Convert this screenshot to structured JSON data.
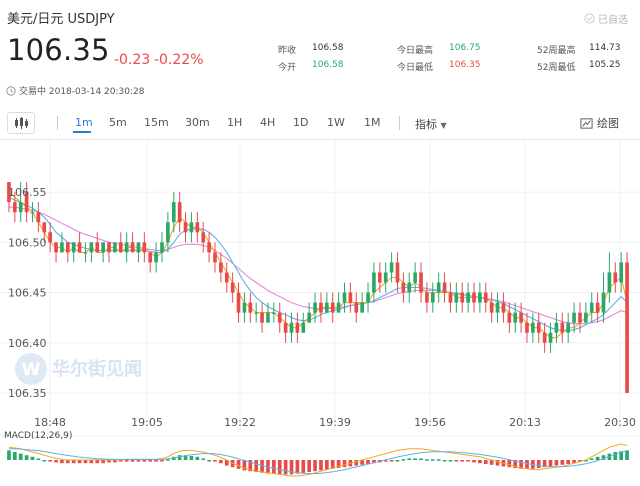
{
  "header": {
    "title": "美元/日元  USDJPY",
    "selected_label": "已自选",
    "price": "106.35",
    "change": "-0.23",
    "change_pct": "-0.22%",
    "status": "交易中 2018-03-14 20:30:28"
  },
  "stats": [
    {
      "label": "昨收",
      "value": "106.58",
      "color": "default"
    },
    {
      "label": "今开",
      "value": "106.58",
      "color": "green"
    },
    {
      "label": "今日最高",
      "value": "106.75",
      "color": "green"
    },
    {
      "label": "今日最低",
      "value": "106.35",
      "color": "red"
    },
    {
      "label": "52周最高",
      "value": "114.73",
      "color": "default"
    },
    {
      "label": "52周最低",
      "value": "105.25",
      "color": "default"
    }
  ],
  "toolbar": {
    "timeframes": [
      "1m",
      "5m",
      "15m",
      "30m",
      "1H",
      "4H",
      "1D",
      "1W",
      "1M"
    ],
    "active": "1m",
    "indicators_label": "指标",
    "draw_label": "绘图"
  },
  "watermark": "华尔街见闻",
  "macd_label": "MACD(12,26,9)",
  "colors": {
    "up": "#2aa86a",
    "down": "#e84a4a",
    "accent": "#2a7ae2",
    "ma_fast": "#f5a623",
    "ma_mid": "#5ab4e6",
    "ma_slow": "#e58ad8"
  },
  "chart_data": {
    "type": "candlestick",
    "y_ticks": [
      "106.55",
      "106.50",
      "106.45",
      "106.40",
      "106.35"
    ],
    "x_ticks": [
      "18:48",
      "19:05",
      "19:22",
      "19:39",
      "19:56",
      "20:13",
      "20:30"
    ],
    "ylim": [
      106.345,
      106.58
    ],
    "candles": [
      [
        106.56,
        106.54,
        106.56,
        106.53
      ],
      [
        106.54,
        106.53,
        106.55,
        106.52
      ],
      [
        106.53,
        106.54,
        106.56,
        106.52
      ],
      [
        106.55,
        106.53,
        106.56,
        106.52
      ],
      [
        106.53,
        106.53,
        106.54,
        106.52
      ],
      [
        106.53,
        106.52,
        106.54,
        106.51
      ],
      [
        106.52,
        106.51,
        106.52,
        106.5
      ],
      [
        106.51,
        106.5,
        106.52,
        106.49
      ],
      [
        106.5,
        106.49,
        106.5,
        106.48
      ],
      [
        106.49,
        106.5,
        106.51,
        106.49
      ],
      [
        106.5,
        106.49,
        106.5,
        106.48
      ],
      [
        106.49,
        106.5,
        106.5,
        106.48
      ],
      [
        106.5,
        106.49,
        106.51,
        106.49
      ],
      [
        106.49,
        106.49,
        106.5,
        106.48
      ],
      [
        106.49,
        106.5,
        106.5,
        106.48
      ],
      [
        106.5,
        106.49,
        106.51,
        106.49
      ],
      [
        106.49,
        106.5,
        106.5,
        106.48
      ],
      [
        106.5,
        106.49,
        106.5,
        106.48
      ],
      [
        106.49,
        106.5,
        106.5,
        106.49
      ],
      [
        106.5,
        106.49,
        106.51,
        106.49
      ],
      [
        106.49,
        106.5,
        106.51,
        106.48
      ],
      [
        106.5,
        106.49,
        106.51,
        106.49
      ],
      [
        106.49,
        106.5,
        106.5,
        106.48
      ],
      [
        106.5,
        106.49,
        106.51,
        106.48
      ],
      [
        106.49,
        106.48,
        106.49,
        106.47
      ],
      [
        106.48,
        106.49,
        106.5,
        106.47
      ],
      [
        106.49,
        106.5,
        106.51,
        106.48
      ],
      [
        106.5,
        106.52,
        106.53,
        106.49
      ],
      [
        106.52,
        106.54,
        106.55,
        106.51
      ],
      [
        106.54,
        106.52,
        106.55,
        106.51
      ],
      [
        106.52,
        106.51,
        106.53,
        106.5
      ],
      [
        106.51,
        106.52,
        106.53,
        106.5
      ],
      [
        106.52,
        106.51,
        106.53,
        106.5
      ],
      [
        106.51,
        106.5,
        106.52,
        106.49
      ],
      [
        106.5,
        106.49,
        106.51,
        106.48
      ],
      [
        106.49,
        106.48,
        106.5,
        106.47
      ],
      [
        106.48,
        106.47,
        106.49,
        106.46
      ],
      [
        106.47,
        106.46,
        106.48,
        106.45
      ],
      [
        106.46,
        106.45,
        106.47,
        106.44
      ],
      [
        106.45,
        106.43,
        106.46,
        106.42
      ],
      [
        106.43,
        106.44,
        106.45,
        106.42
      ],
      [
        106.44,
        106.43,
        106.45,
        106.42
      ],
      [
        106.43,
        106.43,
        106.44,
        106.42
      ],
      [
        106.43,
        106.42,
        106.44,
        106.41
      ],
      [
        106.42,
        106.43,
        106.44,
        106.42
      ],
      [
        106.43,
        106.43,
        106.44,
        106.42
      ],
      [
        106.43,
        106.42,
        106.44,
        106.41
      ],
      [
        106.42,
        106.41,
        106.43,
        106.4
      ],
      [
        106.41,
        106.42,
        106.43,
        106.4
      ],
      [
        106.42,
        106.41,
        106.43,
        106.4
      ],
      [
        106.41,
        106.42,
        106.43,
        106.41
      ],
      [
        106.42,
        106.43,
        106.44,
        106.42
      ],
      [
        106.43,
        106.44,
        106.45,
        106.42
      ],
      [
        106.44,
        106.43,
        106.45,
        106.42
      ],
      [
        106.43,
        106.44,
        106.45,
        106.43
      ],
      [
        106.44,
        106.43,
        106.45,
        106.42
      ],
      [
        106.43,
        106.44,
        106.45,
        106.43
      ],
      [
        106.44,
        106.45,
        106.46,
        106.43
      ],
      [
        106.45,
        106.44,
        106.46,
        106.43
      ],
      [
        106.44,
        106.43,
        106.45,
        106.42
      ],
      [
        106.43,
        106.44,
        106.45,
        106.43
      ],
      [
        106.44,
        106.45,
        106.46,
        106.43
      ],
      [
        106.45,
        106.47,
        106.48,
        106.44
      ],
      [
        106.47,
        106.46,
        106.48,
        106.45
      ],
      [
        106.46,
        106.47,
        106.48,
        106.45
      ],
      [
        106.47,
        106.48,
        106.49,
        106.46
      ],
      [
        106.48,
        106.46,
        106.49,
        106.45
      ],
      [
        106.46,
        106.45,
        106.47,
        106.44
      ],
      [
        106.45,
        106.46,
        106.47,
        106.44
      ],
      [
        106.46,
        106.47,
        106.48,
        106.45
      ],
      [
        106.47,
        106.45,
        106.48,
        106.44
      ],
      [
        106.45,
        106.44,
        106.46,
        106.43
      ],
      [
        106.44,
        106.45,
        106.46,
        106.43
      ],
      [
        106.45,
        106.46,
        106.47,
        106.44
      ],
      [
        106.46,
        106.45,
        106.47,
        106.44
      ],
      [
        106.45,
        106.44,
        106.46,
        106.43
      ],
      [
        106.44,
        106.45,
        106.46,
        106.43
      ],
      [
        106.45,
        106.44,
        106.46,
        106.43
      ],
      [
        106.44,
        106.45,
        106.46,
        106.43
      ],
      [
        106.45,
        106.44,
        106.46,
        106.43
      ],
      [
        106.44,
        106.45,
        106.46,
        106.43
      ],
      [
        106.45,
        106.44,
        106.46,
        106.43
      ],
      [
        106.44,
        106.43,
        106.45,
        106.42
      ],
      [
        106.43,
        106.44,
        106.45,
        106.42
      ],
      [
        106.44,
        106.43,
        106.45,
        106.42
      ],
      [
        106.43,
        106.42,
        106.44,
        106.41
      ],
      [
        106.42,
        106.43,
        106.44,
        106.41
      ],
      [
        106.43,
        106.42,
        106.44,
        106.41
      ],
      [
        106.42,
        106.41,
        106.43,
        106.4
      ],
      [
        106.41,
        106.42,
        106.43,
        106.4
      ],
      [
        106.42,
        106.41,
        106.43,
        106.4
      ],
      [
        106.41,
        106.4,
        106.42,
        106.39
      ],
      [
        106.4,
        106.41,
        106.42,
        106.39
      ],
      [
        106.41,
        106.42,
        106.43,
        106.4
      ],
      [
        106.42,
        106.41,
        106.43,
        106.4
      ],
      [
        106.41,
        106.42,
        106.43,
        106.4
      ],
      [
        106.42,
        106.43,
        106.44,
        106.41
      ],
      [
        106.43,
        106.42,
        106.44,
        106.41
      ],
      [
        106.42,
        106.43,
        106.44,
        106.42
      ],
      [
        106.43,
        106.44,
        106.45,
        106.42
      ],
      [
        106.44,
        106.43,
        106.45,
        106.42
      ],
      [
        106.43,
        106.45,
        106.47,
        106.42
      ],
      [
        106.45,
        106.47,
        106.49,
        106.44
      ],
      [
        106.47,
        106.46,
        106.48,
        106.45
      ],
      [
        106.46,
        106.48,
        106.49,
        106.45
      ],
      [
        106.48,
        106.35,
        106.49,
        106.35
      ]
    ],
    "ma_fast": [
      106.55,
      106.545,
      106.54,
      106.535,
      106.53,
      106.52,
      106.51,
      106.5,
      106.495,
      106.495,
      106.49,
      106.495,
      106.49,
      106.49,
      106.495,
      106.49,
      106.49,
      106.495,
      106.495,
      106.49,
      106.495,
      106.495,
      106.49,
      106.495,
      106.49,
      106.485,
      106.49,
      106.5,
      106.515,
      106.525,
      106.52,
      106.515,
      106.515,
      106.51,
      106.5,
      106.49,
      106.48,
      106.47,
      106.46,
      106.45,
      106.44,
      106.435,
      106.43,
      106.43,
      106.43,
      106.43,
      106.425,
      106.42,
      106.415,
      106.415,
      106.42,
      106.425,
      106.43,
      106.435,
      106.435,
      106.435,
      106.435,
      106.44,
      106.44,
      106.44,
      106.44,
      106.44,
      106.45,
      106.455,
      106.46,
      106.465,
      106.465,
      106.46,
      106.455,
      106.46,
      106.455,
      106.45,
      106.45,
      106.45,
      106.45,
      106.45,
      106.445,
      106.445,
      106.445,
      106.445,
      106.445,
      106.445,
      106.44,
      106.435,
      106.435,
      106.43,
      106.425,
      106.425,
      106.42,
      106.415,
      106.415,
      106.41,
      106.405,
      106.405,
      106.41,
      106.415,
      106.415,
      106.42,
      106.425,
      106.43,
      106.43,
      106.44,
      106.455,
      106.46,
      106.465,
      106.44
    ],
    "ma_mid": [
      106.545,
      106.542,
      106.54,
      106.537,
      106.534,
      106.53,
      106.525,
      106.518,
      106.51,
      106.505,
      106.5,
      106.498,
      106.496,
      106.494,
      106.493,
      106.492,
      106.492,
      106.492,
      106.492,
      106.492,
      106.492,
      106.492,
      106.492,
      106.492,
      106.491,
      106.49,
      106.49,
      106.493,
      106.5,
      106.508,
      106.512,
      106.513,
      106.514,
      106.513,
      106.51,
      106.505,
      106.498,
      106.49,
      106.48,
      106.47,
      106.46,
      106.452,
      106.445,
      106.44,
      106.436,
      106.433,
      106.43,
      106.428,
      106.425,
      106.423,
      106.422,
      106.423,
      106.425,
      106.428,
      106.43,
      106.432,
      106.433,
      106.435,
      106.437,
      106.438,
      106.439,
      106.44,
      106.442,
      106.445,
      106.448,
      106.451,
      106.454,
      106.455,
      106.455,
      106.455,
      106.455,
      106.454,
      106.453,
      106.452,
      106.451,
      106.45,
      106.449,
      106.448,
      106.447,
      106.446,
      106.445,
      106.444,
      106.443,
      106.441,
      106.439,
      106.436,
      106.433,
      106.43,
      106.427,
      106.424,
      106.421,
      106.418,
      106.415,
      106.413,
      106.412,
      106.412,
      106.413,
      106.415,
      106.418,
      106.421,
      106.424,
      106.428,
      106.434,
      106.44,
      106.446,
      106.44
    ],
    "ma_slow": [
      106.535,
      106.535,
      106.534,
      106.533,
      106.532,
      106.53,
      106.528,
      106.525,
      106.522,
      106.519,
      106.516,
      106.513,
      106.51,
      106.508,
      106.506,
      106.504,
      106.502,
      106.5,
      106.499,
      106.498,
      106.497,
      106.496,
      106.495,
      106.494,
      106.493,
      106.492,
      106.492,
      106.493,
      106.495,
      106.497,
      106.498,
      106.498,
      106.498,
      106.497,
      106.495,
      106.492,
      106.488,
      106.484,
      106.479,
      106.474,
      106.469,
      106.464,
      106.46,
      106.456,
      106.452,
      106.449,
      106.446,
      106.443,
      106.44,
      106.438,
      106.436,
      106.435,
      106.434,
      106.434,
      106.434,
      106.434,
      106.435,
      106.436,
      106.437,
      106.438,
      106.439,
      106.44,
      106.441,
      106.443,
      106.445,
      106.447,
      106.449,
      106.45,
      106.451,
      106.452,
      106.452,
      106.452,
      106.452,
      106.452,
      106.451,
      106.45,
      106.449,
      106.448,
      106.447,
      106.446,
      106.445,
      106.444,
      106.443,
      106.442,
      106.441,
      106.439,
      106.437,
      106.435,
      106.433,
      106.431,
      106.429,
      106.427,
      106.425,
      106.423,
      106.421,
      106.42,
      106.419,
      106.419,
      106.419,
      106.42,
      106.421,
      106.423,
      106.426,
      106.429,
      106.432,
      106.43
    ],
    "macd_hist": [
      0.6,
      0.5,
      0.4,
      0.3,
      0.2,
      0.1,
      0.0,
      -0.1,
      -0.15,
      -0.2,
      -0.2,
      -0.2,
      -0.2,
      -0.2,
      -0.2,
      -0.2,
      -0.2,
      -0.15,
      -0.15,
      -0.1,
      -0.1,
      -0.1,
      -0.1,
      -0.1,
      -0.1,
      -0.1,
      -0.05,
      0.05,
      0.2,
      0.3,
      0.3,
      0.25,
      0.2,
      0.1,
      0.0,
      -0.1,
      -0.2,
      -0.35,
      -0.45,
      -0.55,
      -0.65,
      -0.7,
      -0.75,
      -0.8,
      -0.85,
      -0.85,
      -0.9,
      -0.9,
      -0.9,
      -0.85,
      -0.8,
      -0.75,
      -0.7,
      -0.65,
      -0.6,
      -0.55,
      -0.5,
      -0.45,
      -0.4,
      -0.35,
      -0.3,
      -0.25,
      -0.2,
      -0.15,
      -0.1,
      -0.05,
      0.0,
      0.05,
      0.1,
      0.1,
      0.1,
      0.05,
      0.05,
      0.05,
      0.0,
      0.0,
      -0.05,
      -0.1,
      -0.1,
      -0.15,
      -0.2,
      -0.25,
      -0.3,
      -0.35,
      -0.4,
      -0.45,
      -0.5,
      -0.55,
      -0.55,
      -0.55,
      -0.5,
      -0.45,
      -0.4,
      -0.35,
      -0.3,
      -0.25,
      -0.2,
      -0.1,
      0.0,
      0.1,
      0.2,
      0.3,
      0.4,
      0.5,
      0.55,
      0.6
    ],
    "macd_dif": [
      0.8,
      0.75,
      0.7,
      0.6,
      0.5,
      0.4,
      0.3,
      0.2,
      0.1,
      0.05,
      0.0,
      0.0,
      0.0,
      0.0,
      0.0,
      0.0,
      0.0,
      0.0,
      0.0,
      0.0,
      0.05,
      0.05,
      0.05,
      0.05,
      0.05,
      0.05,
      0.1,
      0.2,
      0.4,
      0.55,
      0.6,
      0.6,
      0.55,
      0.5,
      0.4,
      0.3,
      0.15,
      0.0,
      -0.2,
      -0.35,
      -0.5,
      -0.6,
      -0.7,
      -0.75,
      -0.8,
      -0.85,
      -0.9,
      -0.95,
      -1.0,
      -1.0,
      -0.95,
      -0.9,
      -0.8,
      -0.7,
      -0.6,
      -0.5,
      -0.4,
      -0.3,
      -0.2,
      -0.1,
      0.0,
      0.1,
      0.2,
      0.3,
      0.4,
      0.5,
      0.6,
      0.65,
      0.7,
      0.7,
      0.7,
      0.65,
      0.6,
      0.55,
      0.5,
      0.45,
      0.4,
      0.35,
      0.3,
      0.25,
      0.2,
      0.1,
      0.0,
      -0.1,
      -0.2,
      -0.3,
      -0.4,
      -0.5,
      -0.55,
      -0.6,
      -0.6,
      -0.55,
      -0.5,
      -0.45,
      -0.4,
      -0.3,
      -0.2,
      -0.1,
      0.0,
      0.2,
      0.4,
      0.6,
      0.8,
      0.9,
      1.0,
      0.9
    ],
    "macd_dea": [
      0.7,
      0.7,
      0.68,
      0.65,
      0.62,
      0.58,
      0.53,
      0.47,
      0.4,
      0.34,
      0.28,
      0.23,
      0.18,
      0.14,
      0.11,
      0.08,
      0.06,
      0.05,
      0.04,
      0.03,
      0.03,
      0.03,
      0.03,
      0.03,
      0.03,
      0.03,
      0.04,
      0.07,
      0.13,
      0.2,
      0.27,
      0.33,
      0.37,
      0.4,
      0.4,
      0.38,
      0.34,
      0.27,
      0.18,
      0.08,
      -0.03,
      -0.14,
      -0.25,
      -0.35,
      -0.44,
      -0.52,
      -0.6,
      -0.67,
      -0.74,
      -0.79,
      -0.83,
      -0.85,
      -0.85,
      -0.83,
      -0.79,
      -0.73,
      -0.67,
      -0.6,
      -0.52,
      -0.44,
      -0.35,
      -0.26,
      -0.17,
      -0.08,
      0.01,
      0.1,
      0.19,
      0.27,
      0.34,
      0.4,
      0.45,
      0.49,
      0.51,
      0.52,
      0.52,
      0.51,
      0.49,
      0.46,
      0.43,
      0.39,
      0.35,
      0.3,
      0.24,
      0.17,
      0.1,
      0.02,
      -0.06,
      -0.14,
      -0.22,
      -0.29,
      -0.35,
      -0.39,
      -0.41,
      -0.42,
      -0.41,
      -0.39,
      -0.35,
      -0.3,
      -0.24,
      -0.15,
      -0.04,
      0.09,
      0.23,
      0.36,
      0.49,
      0.57
    ]
  }
}
